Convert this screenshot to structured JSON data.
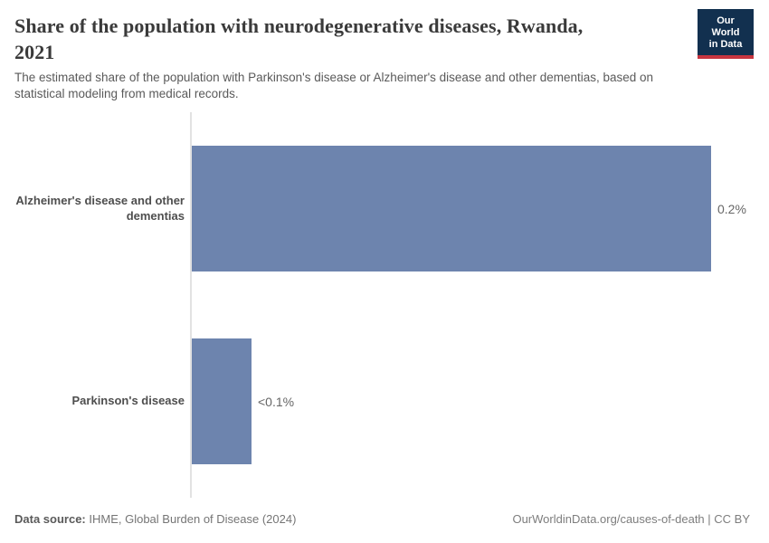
{
  "header": {
    "title_line1": "Share of the population with neurodegenerative diseases, Rwanda,",
    "title_line2": "2021",
    "subtitle_line1": "The estimated share of the population with Parkinson's disease or Alzheimer's disease and other dementias, based on",
    "subtitle_line2": "statistical modeling from medical records.",
    "logo_line1": "Our World",
    "logo_line2": "in Data"
  },
  "chart_data": {
    "type": "bar",
    "orientation": "horizontal",
    "title": "Share of the population with neurodegenerative diseases, Rwanda, 2021",
    "unit": "%",
    "xlim": [
      0,
      0.2
    ],
    "grid": false,
    "legend": false,
    "categories": [
      "Alzheimer's disease and other dementias",
      "Parkinson's disease"
    ],
    "values": [
      0.2,
      0.023
    ],
    "value_labels": [
      "0.2%",
      "<0.1%"
    ],
    "bars": [
      {
        "label": "Alzheimer's disease and other dementias",
        "value": 0.2,
        "display_value": "0.2%",
        "width_frac": 1
      },
      {
        "label": "Parkinson's disease",
        "value": 0.023,
        "display_value": "<0.1%",
        "width_frac": 0.115
      }
    ],
    "bar_color": "#6d84ae",
    "axis_color": "#e2e2e2"
  },
  "footer": {
    "source_label": "Data source:",
    "source_text": "IHME, Global Burden of Disease (2024)",
    "credit": "OurWorldinData.org/causes-of-death | CC BY"
  },
  "colors": {
    "bar": "#6d84ae",
    "axis": "#e2e2e2",
    "logo_bg": "#12304f",
    "logo_stripe": "#c7353f",
    "title_text": "#3a3a3a",
    "subtitle_text": "#5a5a5a"
  }
}
